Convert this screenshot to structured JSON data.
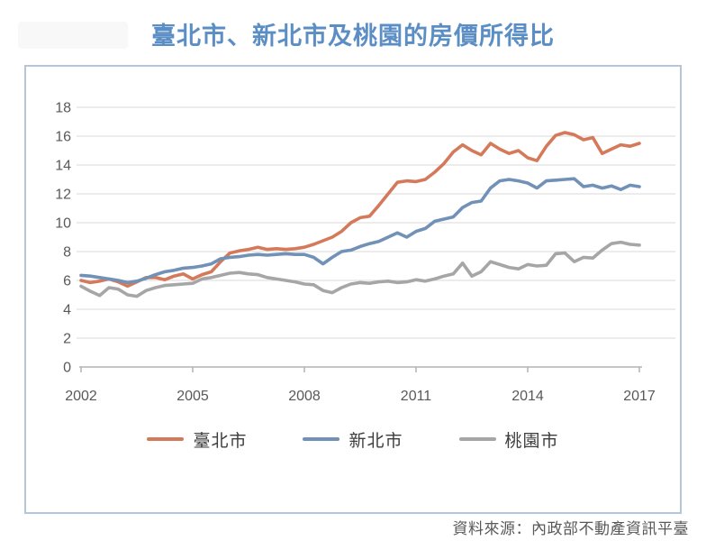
{
  "page": {
    "title": "臺北市、新北市及桃園的房價所得比",
    "source_note": "資料來源：內政部不動產資訊平臺"
  },
  "colors": {
    "title_text": "#5b8ec4",
    "frame_border": "#b5c6d8",
    "grid_line": "#d8d8d8",
    "axis_line": "#b3b3b3",
    "tick_text": "#595959",
    "legend_text": "#3d3d3d",
    "source_text": "#595959",
    "taipei": "#d5795b",
    "new_taipei": "#7191b7",
    "taoyuan": "#a6a6a6"
  },
  "legend": {
    "items": [
      {
        "label": "臺北市",
        "color": "#d5795b"
      },
      {
        "label": "新北市",
        "color": "#7191b7"
      },
      {
        "label": "桃園市",
        "color": "#a6a6a6"
      }
    ]
  },
  "chart_data": {
    "type": "line",
    "title": "臺北市、新北市及桃園的房價所得比",
    "xlabel": "",
    "ylabel": "",
    "x_unit": "year, quarterly data points",
    "x_start": 2002.0,
    "x_step": 0.25,
    "xlim": [
      2002,
      2017
    ],
    "ylim": [
      0,
      18
    ],
    "y_ticks": [
      0,
      2,
      4,
      6,
      8,
      10,
      12,
      14,
      16,
      18
    ],
    "x_tick_years": [
      2002,
      2005,
      2008,
      2011,
      2014,
      2017
    ],
    "x_tick_labels": [
      "2002",
      "2005",
      "2008",
      "2011",
      "2014",
      "2017"
    ],
    "grid": "horizontal",
    "legend_position": "bottom",
    "series": [
      {
        "name": "臺北市",
        "color": "#d5795b",
        "values": [
          6.0,
          5.85,
          5.95,
          6.1,
          5.9,
          5.6,
          5.9,
          6.2,
          6.2,
          6.05,
          6.3,
          6.45,
          6.1,
          6.4,
          6.6,
          7.3,
          7.9,
          8.05,
          8.15,
          8.3,
          8.15,
          8.2,
          8.15,
          8.2,
          8.3,
          8.5,
          8.75,
          9.0,
          9.4,
          10.0,
          10.35,
          10.45,
          11.2,
          12.0,
          12.8,
          12.9,
          12.85,
          13.0,
          13.5,
          14.1,
          14.9,
          15.4,
          15.0,
          14.7,
          15.5,
          15.1,
          14.8,
          15.0,
          14.5,
          14.3,
          15.3,
          16.05,
          16.25,
          16.1,
          15.75,
          15.9,
          14.8,
          15.1,
          15.4,
          15.3,
          15.5
        ]
      },
      {
        "name": "新北市",
        "color": "#7191b7",
        "values": [
          6.35,
          6.3,
          6.2,
          6.1,
          6.0,
          5.85,
          5.95,
          6.15,
          6.4,
          6.6,
          6.7,
          6.85,
          6.9,
          7.0,
          7.15,
          7.5,
          7.6,
          7.65,
          7.75,
          7.8,
          7.75,
          7.8,
          7.85,
          7.8,
          7.8,
          7.6,
          7.15,
          7.6,
          8.0,
          8.1,
          8.35,
          8.55,
          8.7,
          9.0,
          9.3,
          9.0,
          9.4,
          9.6,
          10.1,
          10.25,
          10.4,
          11.05,
          11.4,
          11.5,
          12.4,
          12.9,
          13.0,
          12.9,
          12.75,
          12.4,
          12.9,
          12.95,
          13.0,
          13.05,
          12.5,
          12.6,
          12.4,
          12.55,
          12.3,
          12.6,
          12.5
        ]
      },
      {
        "name": "桃園市",
        "color": "#a6a6a6",
        "values": [
          5.6,
          5.25,
          4.95,
          5.5,
          5.4,
          5.0,
          4.9,
          5.3,
          5.5,
          5.65,
          5.7,
          5.75,
          5.8,
          6.1,
          6.2,
          6.35,
          6.5,
          6.55,
          6.45,
          6.4,
          6.2,
          6.1,
          6.0,
          5.9,
          5.75,
          5.7,
          5.3,
          5.15,
          5.5,
          5.75,
          5.85,
          5.8,
          5.9,
          5.95,
          5.85,
          5.9,
          6.05,
          5.95,
          6.1,
          6.3,
          6.45,
          7.2,
          6.3,
          6.6,
          7.3,
          7.1,
          6.9,
          6.8,
          7.1,
          7.0,
          7.05,
          7.85,
          7.9,
          7.3,
          7.6,
          7.55,
          8.1,
          8.55,
          8.65,
          8.5,
          8.45
        ]
      }
    ]
  }
}
